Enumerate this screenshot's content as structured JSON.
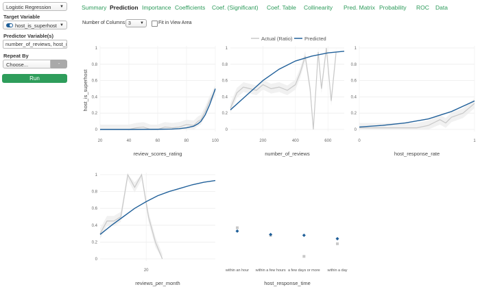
{
  "sidebar": {
    "model_type": "Logistic Regression",
    "target_label": "Target Variable",
    "target_value": "host_is_superhost",
    "predictor_label": "Predictor Variable(s)",
    "predictor_value": "number_of_reviews, host_r...",
    "repeat_label": "Repeat By",
    "repeat_placeholder": "Choose...",
    "repeat_btn": "-",
    "run_label": "Run"
  },
  "tabs": [
    "Summary",
    "Prediction",
    "Importance",
    "Coefficients",
    "Coef. (Significant)",
    "Coef. Table",
    "Collinearity",
    "Pred. Matrix",
    "Probability",
    "ROC",
    "Data"
  ],
  "active_tab": "Prediction",
  "controls": {
    "columns_label": "Number of Columns:",
    "columns_value": "3",
    "fit_label": "Fit in View Area"
  },
  "colors": {
    "predicted": "#1f5f99",
    "actual": "#c8c8c8",
    "band": "#eeeeee",
    "accent": "#2b9a59"
  },
  "legend": {
    "actual": "Actual (Ratio)",
    "predicted": "Predicted"
  },
  "y_axis_label": "host_is_superhost",
  "chart_data": [
    {
      "type": "line",
      "xlabel": "review_scores_rating",
      "ylabel": "host_is_superhost",
      "xlim": [
        20,
        100
      ],
      "ylim": [
        0,
        1
      ],
      "xticks": [
        20,
        40,
        60,
        80,
        100
      ],
      "yticks": [
        0,
        0.2,
        0.4,
        0.6,
        0.8,
        1
      ],
      "series": [
        {
          "name": "Predicted",
          "x": [
            20,
            40,
            60,
            70,
            75,
            80,
            85,
            88,
            90,
            93,
            96,
            100
          ],
          "y": [
            0,
            0,
            0.002,
            0.005,
            0.01,
            0.02,
            0.04,
            0.07,
            0.1,
            0.18,
            0.3,
            0.5
          ]
        },
        {
          "name": "Actual (Ratio)",
          "x": [
            20,
            40,
            45,
            50,
            55,
            60,
            65,
            70,
            75,
            80,
            85,
            88,
            90,
            93,
            96,
            100
          ],
          "y": [
            0,
            0,
            0.02,
            0.03,
            0,
            0,
            0.03,
            0.02,
            0.03,
            0.06,
            0.05,
            0.1,
            0.12,
            0.22,
            0.35,
            0.48
          ]
        }
      ]
    },
    {
      "type": "line",
      "xlabel": "number_of_reviews",
      "xlim": [
        0,
        700
      ],
      "ylim": [
        0,
        1
      ],
      "xticks": [
        200,
        400,
        600
      ],
      "yticks": [
        0,
        0.2,
        0.4,
        0.6,
        0.8,
        1
      ],
      "series": [
        {
          "name": "Predicted",
          "x": [
            0,
            100,
            200,
            300,
            400,
            500,
            600,
            700
          ],
          "y": [
            0.24,
            0.42,
            0.6,
            0.74,
            0.84,
            0.9,
            0.94,
            0.96
          ]
        },
        {
          "name": "Actual (Ratio)",
          "x": [
            0,
            40,
            80,
            120,
            160,
            200,
            250,
            300,
            350,
            400,
            430,
            460,
            490,
            510,
            540,
            560,
            590,
            620,
            650
          ],
          "y": [
            0.26,
            0.45,
            0.52,
            0.5,
            0.48,
            0.55,
            0.5,
            0.52,
            0.48,
            0.55,
            0.7,
            0.9,
            0.5,
            0,
            0.95,
            0.5,
            1,
            0.35,
            0.95
          ]
        }
      ]
    },
    {
      "type": "line",
      "xlabel": "host_response_rate",
      "xlim": [
        0,
        1
      ],
      "ylim": [
        0,
        1
      ],
      "xticks": [
        0,
        1
      ],
      "yticks": [
        0,
        0.2,
        0.4,
        0.6,
        0.8,
        1
      ],
      "series": [
        {
          "name": "Predicted",
          "x": [
            0,
            0.2,
            0.4,
            0.6,
            0.8,
            1
          ],
          "y": [
            0.03,
            0.05,
            0.08,
            0.13,
            0.22,
            0.35
          ]
        },
        {
          "name": "Actual (Ratio)",
          "x": [
            0,
            0.2,
            0.4,
            0.5,
            0.6,
            0.7,
            0.75,
            0.8,
            0.9,
            1
          ],
          "y": [
            0.02,
            0.02,
            0.02,
            0.02,
            0.05,
            0.12,
            0.08,
            0.15,
            0.2,
            0.32
          ]
        }
      ]
    },
    {
      "type": "line",
      "xlabel": "reviews_per_month",
      "xlim": [
        0,
        50
      ],
      "ylim": [
        0,
        1
      ],
      "xticks": [
        20
      ],
      "yticks": [
        0,
        0.2,
        0.4,
        0.6,
        0.8,
        1
      ],
      "series": [
        {
          "name": "Predicted",
          "x": [
            0,
            5,
            10,
            15,
            20,
            25,
            30,
            35,
            40,
            45,
            50
          ],
          "y": [
            0.29,
            0.4,
            0.5,
            0.6,
            0.68,
            0.75,
            0.8,
            0.84,
            0.88,
            0.91,
            0.93
          ]
        },
        {
          "name": "Actual (Ratio)",
          "x": [
            0,
            3,
            6,
            9,
            12,
            15,
            18,
            21,
            24,
            27
          ],
          "y": [
            0.3,
            0.45,
            0.45,
            0.5,
            1,
            0.85,
            1,
            0.5,
            0.2,
            0
          ]
        }
      ]
    },
    {
      "type": "scatter",
      "xlabel": "host_response_time",
      "categories": [
        "within an hour",
        "within a few hours",
        "a few days or more",
        "within a day"
      ],
      "ylim": [
        0,
        1
      ],
      "series": [
        {
          "name": "Predicted",
          "values": [
            0.33,
            0.29,
            0.28,
            0.24
          ]
        },
        {
          "name": "Actual (Ratio)",
          "values": [
            0.37,
            0.28,
            0.03,
            0.18
          ]
        }
      ]
    }
  ]
}
